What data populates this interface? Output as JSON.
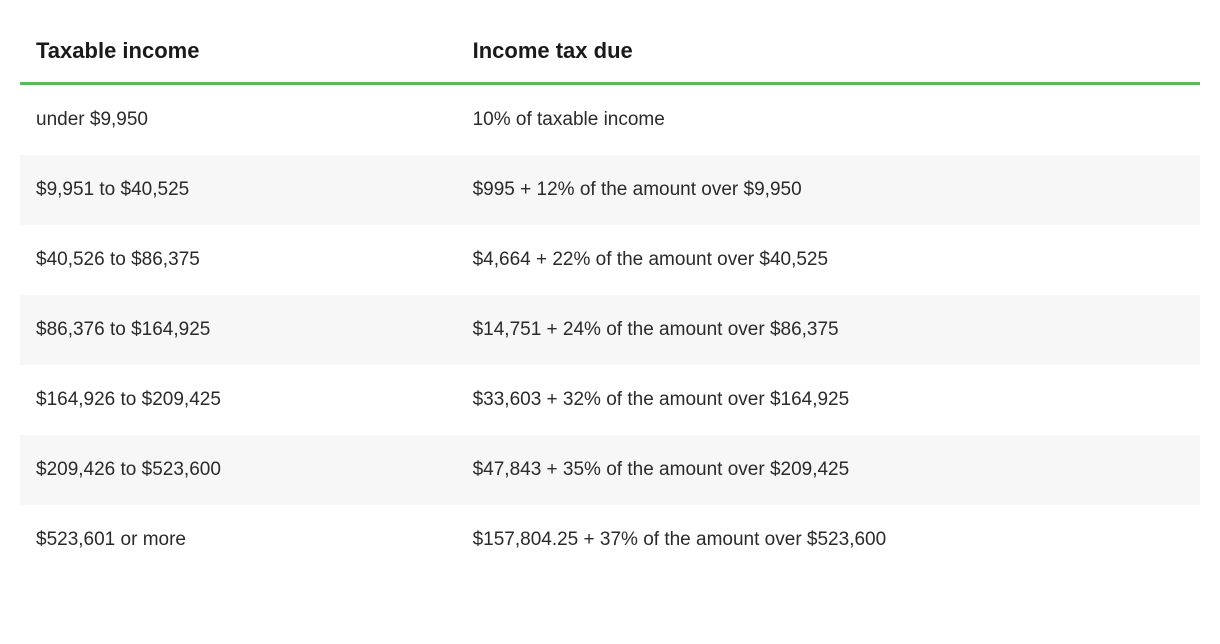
{
  "table": {
    "columns": [
      {
        "label": "Taxable income"
      },
      {
        "label": "Income tax due"
      }
    ],
    "rows": [
      {
        "income": "under $9,950",
        "due": "10% of taxable income"
      },
      {
        "income": "$9,951 to $40,525",
        "due": "$995 + 12% of the amount over $9,950"
      },
      {
        "income": "$40,526 to $86,375",
        "due": "$4,664 + 22% of the amount over $40,525"
      },
      {
        "income": "$86,376 to $164,925",
        "due": "$14,751 + 24% of the amount over $86,375"
      },
      {
        "income": "$164,926 to $209,425",
        "due": "$33,603 + 32% of the amount over $164,925"
      },
      {
        "income": "$209,426 to $523,600",
        "due": "$47,843 + 35% of the amount over $209,425"
      },
      {
        "income": "$523,601 or more",
        "due": "$157,804.25 + 37% of the amount over $523,600"
      }
    ],
    "header_underline_color": "#5cb85c",
    "row_alt_bg": "#f7f7f7",
    "row_bg": "#ffffff",
    "text_color": "#2a2a2a",
    "header_fontsize": 22,
    "body_fontsize": 19
  }
}
